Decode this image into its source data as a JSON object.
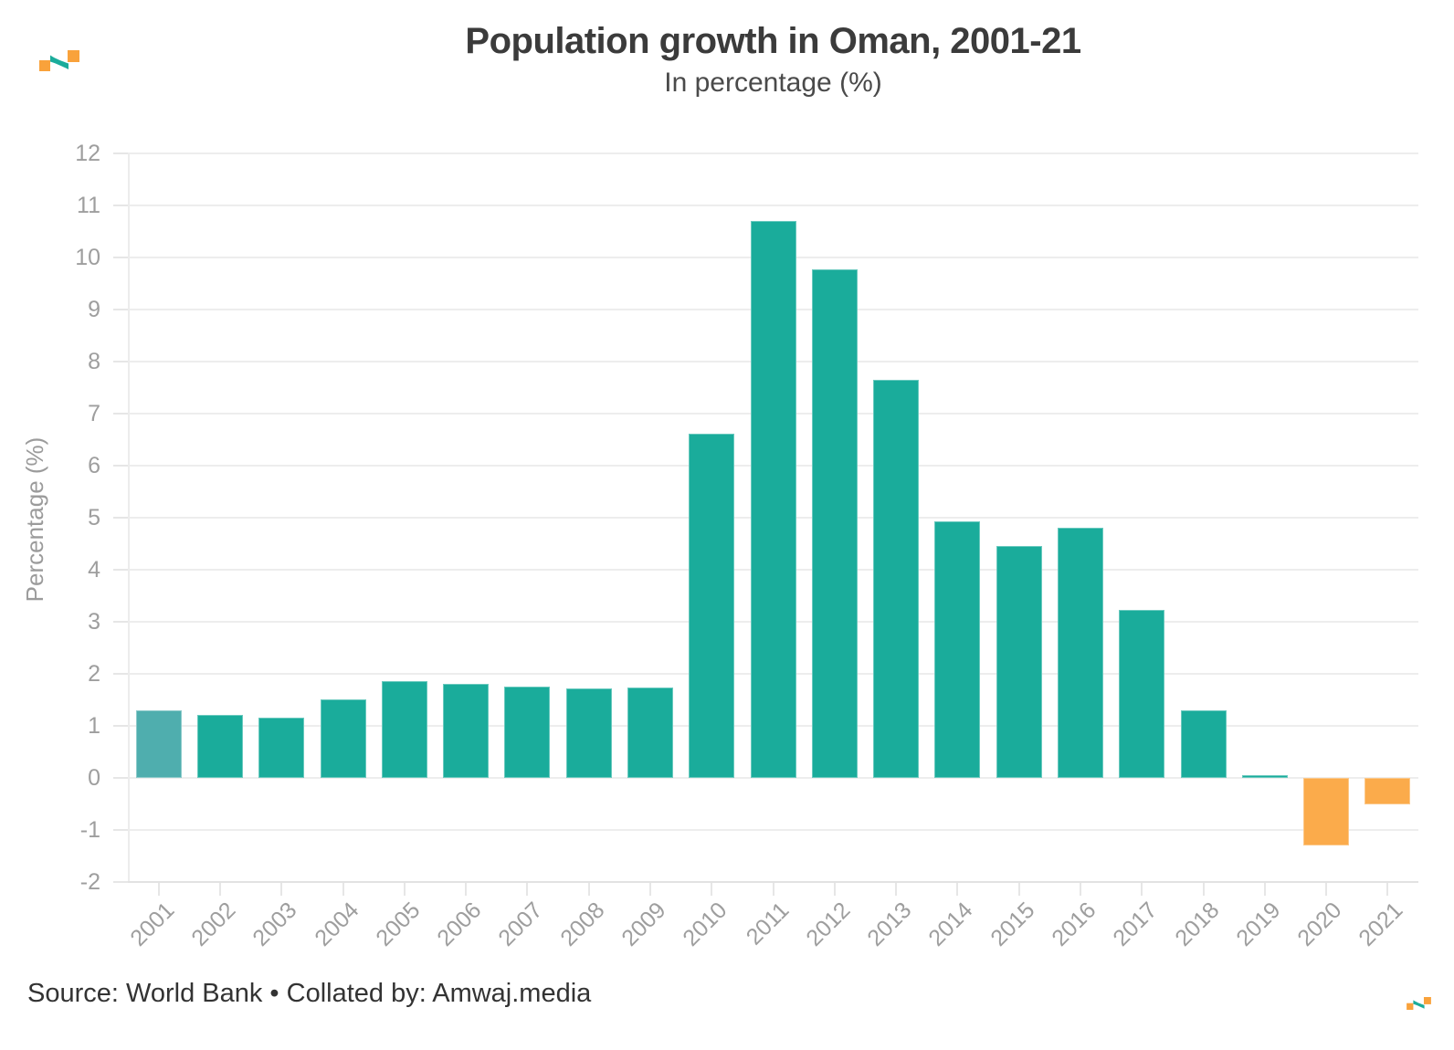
{
  "footer": {
    "source": "Source: World Bank • Collated by: Amwaj.media"
  },
  "branding": {
    "logo_name": "amwaj-media-logo",
    "logo_orange": "#F9A23B",
    "logo_teal": "#1BAC9B"
  },
  "chart_data": {
    "type": "bar",
    "title": "Population growth in Oman, 2001-21",
    "subtitle": "In percentage (%)",
    "xlabel": "",
    "ylabel": "Percentage (%)",
    "ylim": [
      -2,
      12
    ],
    "yticks": [
      -2,
      -1,
      0,
      1,
      2,
      3,
      4,
      5,
      6,
      7,
      8,
      9,
      10,
      11,
      12
    ],
    "grid": true,
    "legend": "none",
    "categories": [
      "2001",
      "2002",
      "2003",
      "2004",
      "2005",
      "2006",
      "2007",
      "2008",
      "2009",
      "2010",
      "2011",
      "2012",
      "2013",
      "2014",
      "2015",
      "2016",
      "2017",
      "2018",
      "2019",
      "2020",
      "2021"
    ],
    "values": [
      1.29,
      1.21,
      1.16,
      1.51,
      1.86,
      1.8,
      1.76,
      1.72,
      1.74,
      6.61,
      10.7,
      9.77,
      7.65,
      4.93,
      4.46,
      4.8,
      3.22,
      1.3,
      0.05,
      -1.3,
      -0.5
    ],
    "bar_color_keys": [
      "muted",
      "teal",
      "teal",
      "teal",
      "teal",
      "teal",
      "teal",
      "teal",
      "teal",
      "teal",
      "teal",
      "teal",
      "teal",
      "teal",
      "teal",
      "teal",
      "teal",
      "teal",
      "teal",
      "orange",
      "orange"
    ],
    "colors": {
      "teal": "#1AAC9B",
      "muted": "#4FAEAE",
      "orange": "#FBAB4B"
    }
  }
}
